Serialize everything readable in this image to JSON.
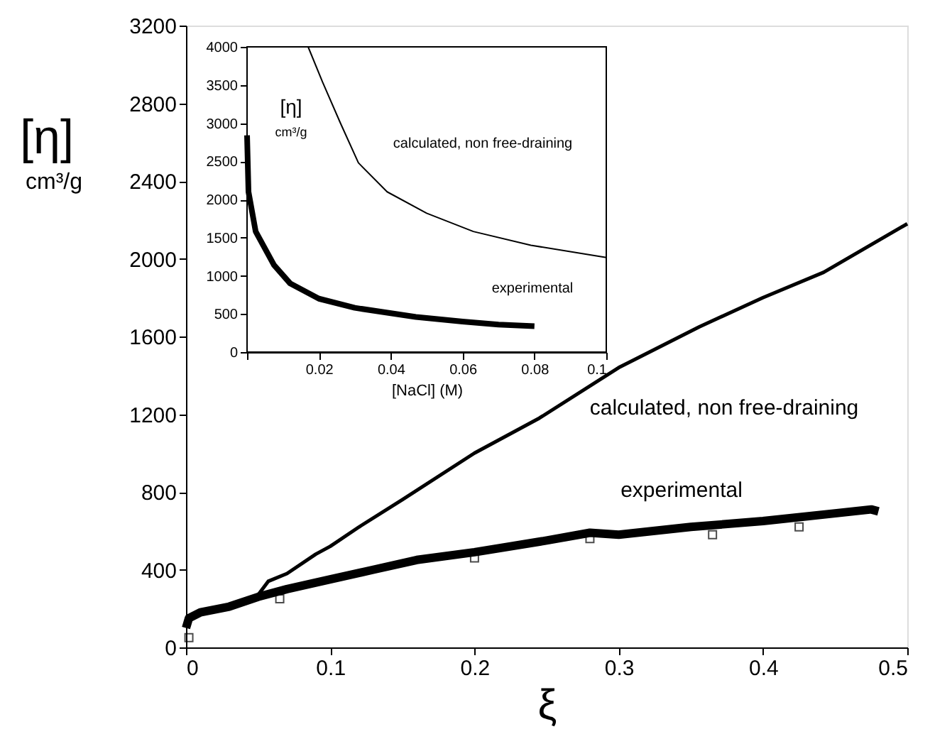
{
  "chart_data": [
    {
      "type": "line",
      "xlabel": "ξ",
      "ylabel": "[η]\ncm³/g",
      "xlim": [
        0,
        0.5
      ],
      "ylim": [
        0,
        3200
      ],
      "xticks": [
        0,
        0.1,
        0.2,
        0.3,
        0.4,
        0.5
      ],
      "yticks": [
        0,
        400,
        800,
        1200,
        1600,
        2000,
        2400,
        2800,
        3200
      ],
      "grid": false,
      "series": [
        {
          "color": "#000000",
          "x": [
            0.05,
            0.057,
            0.07,
            0.09,
            0.1,
            0.12,
            0.15,
            0.2,
            0.245,
            0.3,
            0.356,
            0.4,
            0.442,
            0.5
          ],
          "values": [
            270,
            340,
            380,
            480,
            520,
            620,
            760,
            1000,
            1180,
            1440,
            1650,
            1800,
            1930,
            2180
          ]
        },
        {
          "color": "#000000",
          "x": [
            0,
            0.002,
            0.01,
            0.03,
            0.05,
            0.07,
            0.1,
            0.13,
            0.16,
            0.2,
            0.25,
            0.28,
            0.3,
            0.35,
            0.4,
            0.45,
            0.475,
            0.48
          ],
          "values": [
            100,
            150,
            180,
            210,
            260,
            300,
            350,
            400,
            450,
            490,
            550,
            590,
            580,
            620,
            650,
            690,
            710,
            700
          ]
        },
        {
          "type": "scatter",
          "marker": "square",
          "color": "#000000",
          "x": [
            0.002,
            0.065,
            0.2,
            0.28,
            0.365,
            0.425
          ],
          "values": [
            50,
            250,
            460,
            560,
            580,
            620
          ]
        }
      ],
      "annotations": [
        "calculated, non free-draining",
        "experimental"
      ]
    },
    {
      "type": "line",
      "xlabel": "[NaCl] (M)",
      "ylabel": "[η]\ncm³/g",
      "xlim": [
        0,
        0.1
      ],
      "ylim": [
        0,
        4000
      ],
      "xticks": [
        {
          "value": 0,
          "label": null
        },
        0.02,
        0.04,
        0.06,
        0.08,
        0.1
      ],
      "yticks": [
        0,
        500,
        1000,
        1500,
        2000,
        2500,
        3000,
        3500,
        4000
      ],
      "grid": false,
      "series": [
        {
          "color": "#000000",
          "x": [
            0.017,
            0.021,
            0.026,
            0.031,
            0.039,
            0.05,
            0.063,
            0.079,
            0.1
          ],
          "values": [
            4000,
            3540,
            3000,
            2480,
            2100,
            1820,
            1580,
            1400,
            1240
          ]
        },
        {
          "color": "#000000",
          "x": [
            0,
            0.0004,
            0.0024,
            0.0075,
            0.012,
            0.02,
            0.03,
            0.047,
            0.06,
            0.07,
            0.08
          ],
          "values": [
            2840,
            2100,
            1580,
            1140,
            900,
            700,
            580,
            460,
            400,
            360,
            340
          ]
        }
      ],
      "annotations": [
        "calculated, non free-draining",
        "experimental"
      ]
    }
  ]
}
